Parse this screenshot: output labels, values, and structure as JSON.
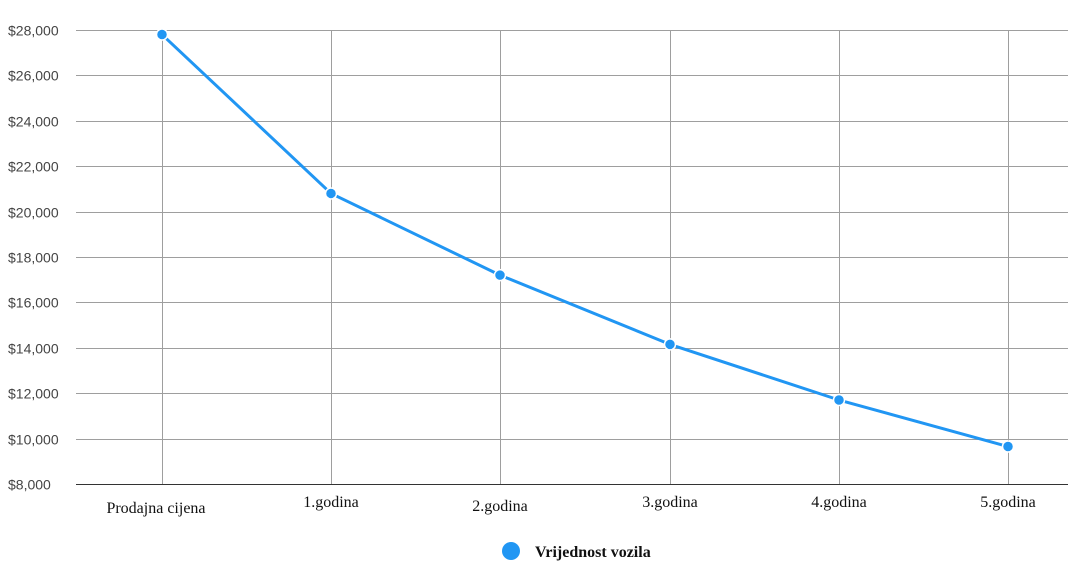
{
  "chart_data": {
    "type": "line",
    "categories": [
      "Prodajna cijena",
      "1.godina",
      "2.godina",
      "3.godina",
      "4.godina",
      "5.godina"
    ],
    "series": [
      {
        "name": "Vrijednost vozila",
        "values": [
          27800,
          20800,
          17200,
          14150,
          11700,
          9650
        ]
      }
    ],
    "ylim": [
      8000,
      28000
    ],
    "yticks": [
      "$8,000",
      "$10,000",
      "$12,000",
      "$14,000",
      "$16,000",
      "$18,000",
      "$20,000",
      "$22,000",
      "$24,000",
      "$26,000",
      "$28,000"
    ],
    "ytick_values": [
      8000,
      10000,
      12000,
      14000,
      16000,
      18000,
      20000,
      22000,
      24000,
      26000,
      28000
    ],
    "grid": true,
    "legend_position": "bottom-center",
    "colors": {
      "series": "#2196f3",
      "grid": "#9e9e9e",
      "axis": "#333333"
    }
  }
}
